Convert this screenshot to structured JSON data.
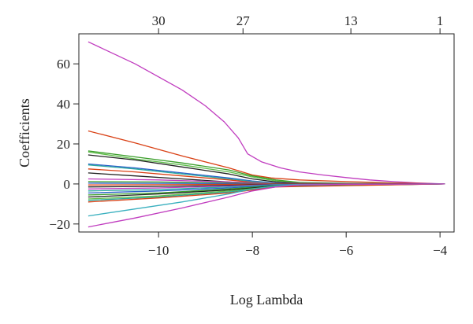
{
  "chart_data": {
    "type": "line",
    "title": "",
    "xlabel": "Log Lambda",
    "ylabel": "Coefficients",
    "xlim": [
      -11.7,
      -3.7
    ],
    "ylim": [
      -24,
      75
    ],
    "x_ticks": [
      -10,
      -8,
      -6,
      -4
    ],
    "x_tick_labels": [
      "−10",
      "−8",
      "−6",
      "−4"
    ],
    "y_ticks": [
      -20,
      0,
      20,
      40,
      60
    ],
    "y_tick_labels": [
      "−20",
      "0",
      "20",
      "40",
      "60"
    ],
    "top_ticks": [
      {
        "x": -10.0,
        "label": "30"
      },
      {
        "x": -8.2,
        "label": "27"
      },
      {
        "x": -5.9,
        "label": "13"
      },
      {
        "x": -4.0,
        "label": "1"
      }
    ],
    "grid": false,
    "legend": "none",
    "series": [
      {
        "color": "#c03cbf",
        "x": [
          -11.5,
          -10.5,
          -9.5,
          -9.0,
          -8.6,
          -8.3,
          -8.1,
          -7.8,
          -7.4,
          -7.0,
          -6.5,
          -6.0,
          -5.5,
          -5.0,
          -4.5,
          -3.9
        ],
        "y": [
          71,
          60,
          47,
          39,
          31,
          23,
          15,
          11,
          8,
          6,
          4.5,
          3.2,
          2.0,
          1.2,
          0.5,
          0
        ]
      },
      {
        "color": "#d94014",
        "x": [
          -11.5,
          -10.5,
          -9.5,
          -8.5,
          -8.0,
          -7.6,
          -7.0,
          -6.0,
          -5.0,
          -3.9
        ],
        "y": [
          26.5,
          20.5,
          14,
          8,
          4.5,
          3,
          2,
          1.2,
          0.5,
          0
        ]
      },
      {
        "color": "#3a9e2a",
        "x": [
          -11.5,
          -10.5,
          -9.5,
          -8.5,
          -8.0,
          -7.5,
          -7.0,
          -6.0,
          -5.0,
          -3.9
        ],
        "y": [
          16.5,
          13.5,
          10.5,
          7,
          4,
          2,
          0.8,
          0.4,
          0.2,
          0
        ]
      },
      {
        "color": "#5cbc47",
        "x": [
          -11.5,
          -10.5,
          -9.5,
          -8.5,
          -8.0,
          -7.5,
          -7.0,
          -6.0,
          -5.0,
          -3.9
        ],
        "y": [
          16,
          12.5,
          9.5,
          6,
          3.5,
          1.5,
          0.6,
          0.3,
          0.1,
          0
        ]
      },
      {
        "color": "#222222",
        "x": [
          -11.5,
          -10.5,
          -9.5,
          -8.5,
          -8.0,
          -7.5,
          -7.0,
          -6.0,
          -3.9
        ],
        "y": [
          14.5,
          12,
          8.5,
          5,
          2.5,
          1,
          0.3,
          0.1,
          0
        ]
      },
      {
        "color": "#2a5fc9",
        "x": [
          -11.5,
          -10.5,
          -9.5,
          -8.5,
          -8.0,
          -7.5,
          -7.0,
          -3.9
        ],
        "y": [
          10,
          8,
          5.5,
          3,
          1.5,
          0.5,
          0,
          0
        ]
      },
      {
        "color": "#2aa79e",
        "x": [
          -11.5,
          -10.5,
          -9.5,
          -8.5,
          -8.0,
          -7.5,
          -7.0,
          -3.9
        ],
        "y": [
          9.5,
          7.5,
          5,
          2.5,
          1.2,
          0.4,
          0,
          0
        ]
      },
      {
        "color": "#d94014",
        "x": [
          -11.5,
          -10.5,
          -9.5,
          -8.5,
          -8.0,
          -7.5,
          -3.9
        ],
        "y": [
          7.5,
          6,
          4,
          2,
          0.8,
          0,
          0
        ]
      },
      {
        "color": "#222222",
        "x": [
          -11.5,
          -10.5,
          -9.5,
          -8.5,
          -8.0,
          -7.5,
          -3.9
        ],
        "y": [
          5.5,
          4,
          2.5,
          1,
          0.3,
          0,
          0
        ]
      },
      {
        "color": "#c03cbf",
        "x": [
          -11.5,
          -10.0,
          -8.5,
          -7.5,
          -3.9
        ],
        "y": [
          2.5,
          2,
          1,
          0.3,
          0
        ]
      },
      {
        "color": "#3a9e2a",
        "x": [
          -11.5,
          -10.0,
          -8.5,
          -7.5,
          -3.9
        ],
        "y": [
          1.2,
          1,
          0.5,
          0.1,
          0
        ]
      },
      {
        "color": "#2a5fc9",
        "x": [
          -11.5,
          -10.0,
          -8.5,
          -7.5,
          -3.9
        ],
        "y": [
          0.4,
          0.3,
          0.2,
          0,
          0
        ]
      },
      {
        "color": "#d94014",
        "x": [
          -11.5,
          -10.0,
          -8.5,
          -7.5,
          -3.9
        ],
        "y": [
          -0.5,
          -0.4,
          -0.2,
          0,
          0
        ]
      },
      {
        "color": "#222222",
        "x": [
          -11.5,
          -10.0,
          -8.5,
          -7.5,
          -3.9
        ],
        "y": [
          -1.5,
          -1.2,
          -0.7,
          -0.2,
          0
        ]
      },
      {
        "color": "#c03cbf",
        "x": [
          -11.5,
          -10.0,
          -8.5,
          -7.5,
          -3.9
        ],
        "y": [
          -2.5,
          -2,
          -1,
          -0.3,
          0
        ]
      },
      {
        "color": "#2aa79e",
        "x": [
          -11.5,
          -10.0,
          -8.5,
          -7.5,
          -3.9
        ],
        "y": [
          -3.5,
          -2.8,
          -1.5,
          -0.4,
          0
        ]
      },
      {
        "color": "#2a5fc9",
        "x": [
          -11.5,
          -10.0,
          -8.5,
          -7.5,
          -3.9
        ],
        "y": [
          -4.5,
          -3.5,
          -2,
          -0.6,
          0
        ]
      },
      {
        "color": "#3a9e2a",
        "x": [
          -11.5,
          -10.0,
          -8.5,
          -7.5,
          -3.9
        ],
        "y": [
          -5.5,
          -4.5,
          -2.5,
          -0.8,
          0
        ]
      },
      {
        "color": "#222222",
        "x": [
          -11.5,
          -10.0,
          -8.5,
          -7.5,
          -3.9
        ],
        "y": [
          -6.5,
          -5,
          -3,
          -1,
          0
        ]
      },
      {
        "color": "#5cbc47",
        "x": [
          -11.5,
          -10.0,
          -8.5,
          -7.5,
          -3.9
        ],
        "y": [
          -7.5,
          -6,
          -3.5,
          -1.2,
          0
        ]
      },
      {
        "color": "#2aa79e",
        "x": [
          -11.5,
          -10.0,
          -8.5,
          -7.5,
          -3.9
        ],
        "y": [
          -8.2,
          -6.5,
          -4,
          -1.3,
          0
        ]
      },
      {
        "color": "#d94014",
        "x": [
          -11.5,
          -10.0,
          -8.5,
          -7.5,
          -3.9
        ],
        "y": [
          -9,
          -7,
          -4.5,
          -1.5,
          0
        ]
      },
      {
        "color": "#3ab0bf",
        "x": [
          -11.5,
          -10.5,
          -9.5,
          -8.5,
          -8.0,
          -7.5,
          -7.0,
          -3.9
        ],
        "y": [
          -16,
          -12.5,
          -9,
          -5,
          -2.5,
          -1,
          -0.3,
          0
        ]
      },
      {
        "color": "#c03cbf",
        "x": [
          -11.5,
          -10.5,
          -9.5,
          -8.5,
          -8.0,
          -7.5,
          -7.0,
          -6.0,
          -3.9
        ],
        "y": [
          -21.5,
          -17,
          -12,
          -6.5,
          -3.5,
          -1.5,
          -0.5,
          -0.2,
          0
        ]
      }
    ]
  }
}
